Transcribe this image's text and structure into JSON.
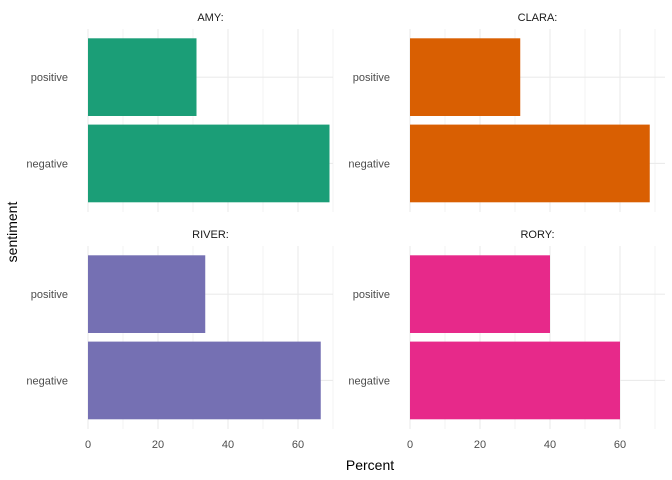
{
  "chart_data": {
    "type": "bar",
    "orientation": "horizontal",
    "facet": "wrap",
    "xlabel": "Percent",
    "ylabel": "sentiment",
    "xlim": [
      0,
      70
    ],
    "x_ticks": [
      0,
      20,
      40,
      60
    ],
    "categories": [
      "positive",
      "negative"
    ],
    "grid": true,
    "legend": "none",
    "panels": [
      {
        "name": "AMY:",
        "color": "#1b9e77",
        "values": [
          31,
          69
        ]
      },
      {
        "name": "CLARA:",
        "color": "#d95f02",
        "values": [
          31.5,
          68.5
        ]
      },
      {
        "name": "RIVER:",
        "color": "#7570b3",
        "values": [
          33.5,
          66.5
        ]
      },
      {
        "name": "RORY:",
        "color": "#e7298a",
        "values": [
          40,
          60
        ]
      }
    ]
  }
}
